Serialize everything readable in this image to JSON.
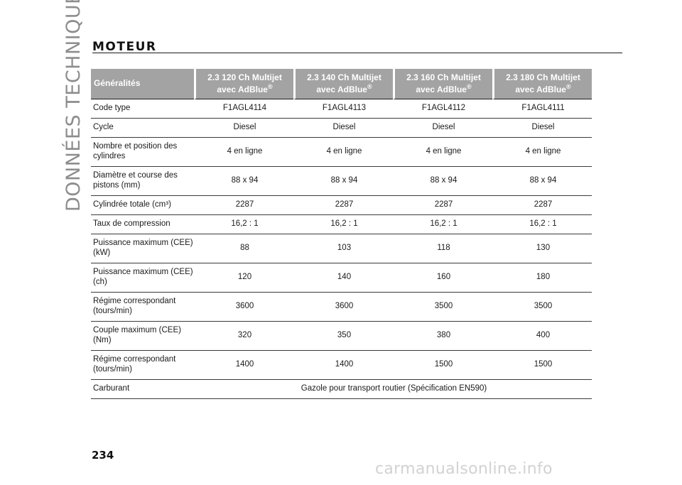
{
  "page": {
    "side_title": "DONNÉES TECHNIQUES",
    "section_title": "MOTEUR",
    "page_number": "234",
    "watermark": "carmanualsonline.info"
  },
  "table": {
    "header": {
      "label": "Généralités",
      "columns": [
        {
          "line1": "2.3 120 Ch Multijet",
          "line2": "avec AdBlue"
        },
        {
          "line1": "2.3 140 Ch Multijet",
          "line2": "avec AdBlue"
        },
        {
          "line1": "2.3 160 Ch Multijet",
          "line2": "avec AdBlue"
        },
        {
          "line1": "2.3 180 Ch Multijet",
          "line2": "avec AdBlue"
        }
      ],
      "registered_mark": "®"
    },
    "rows": [
      {
        "label": "Code type",
        "values": [
          "F1AGL4114",
          "F1AGL4113",
          "F1AGL4112",
          "F1AGL4111"
        ]
      },
      {
        "label": "Cycle",
        "values": [
          "Diesel",
          "Diesel",
          "Diesel",
          "Diesel"
        ]
      },
      {
        "label": "Nombre et position des cylindres",
        "values": [
          "4 en ligne",
          "4 en ligne",
          "4 en ligne",
          "4 en ligne"
        ]
      },
      {
        "label": "Diamètre et course des pistons (mm)",
        "values": [
          "88 x 94",
          "88 x 94",
          "88 x 94",
          "88 x 94"
        ]
      },
      {
        "label": "Cylindrée totale (cm³)",
        "values": [
          "2287",
          "2287",
          "2287",
          "2287"
        ]
      },
      {
        "label": "Taux de compression",
        "values": [
          "16,2 : 1",
          "16,2 : 1",
          "16,2 : 1",
          "16,2 : 1"
        ]
      },
      {
        "label": "Puissance maximum (CEE) (kW)",
        "values": [
          "88",
          "103",
          "118",
          "130"
        ]
      },
      {
        "label": "Puissance maximum (CEE) (ch)",
        "values": [
          "120",
          "140",
          "160",
          "180"
        ]
      },
      {
        "label": "Régime correspondant (tours/min)",
        "values": [
          "3600",
          "3600",
          "3500",
          "3500"
        ]
      },
      {
        "label": "Couple maximum (CEE) (Nm)",
        "values": [
          "320",
          "350",
          "380",
          "400"
        ]
      },
      {
        "label": "Régime correspondant (tours/min)",
        "values": [
          "1400",
          "1400",
          "1500",
          "1500"
        ]
      },
      {
        "label": "Carburant",
        "merged_value": "Gazole pour transport routier (Spécification EN590)"
      }
    ]
  }
}
